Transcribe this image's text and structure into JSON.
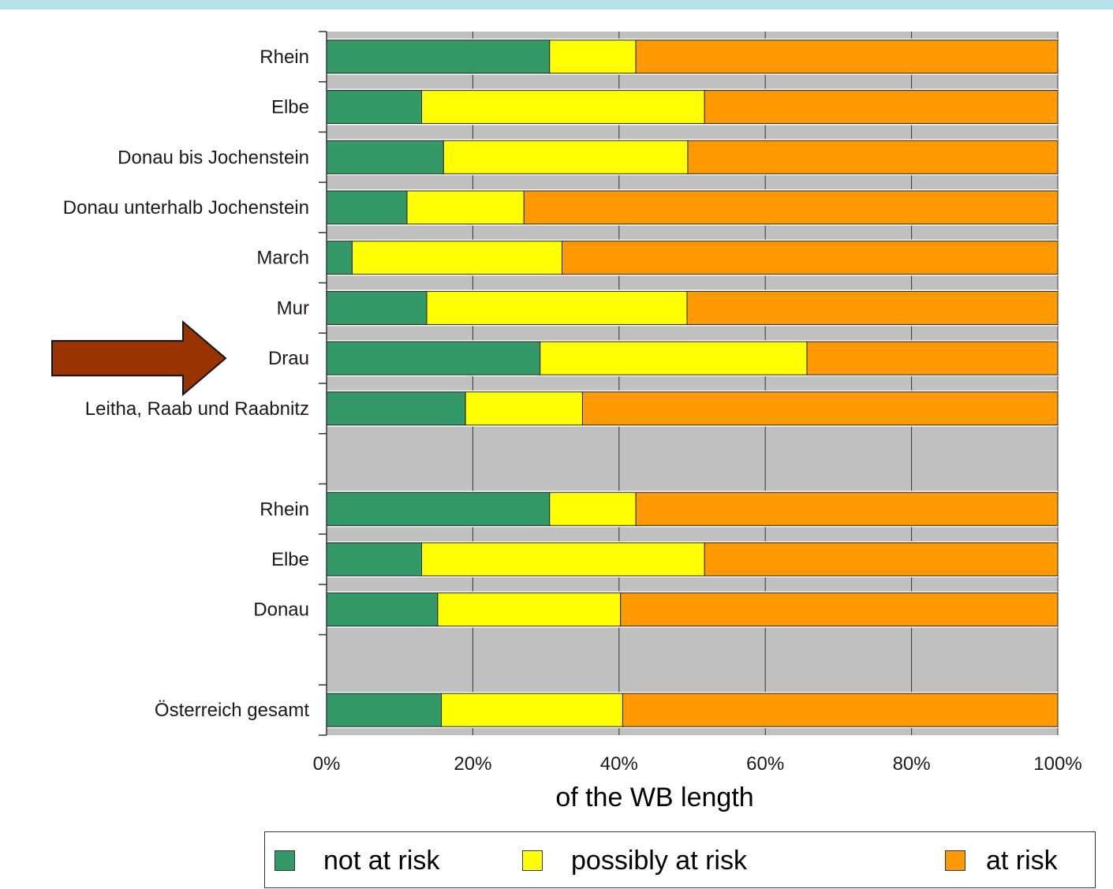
{
  "chart_data": {
    "type": "bar",
    "orientation": "horizontal",
    "stacked": true,
    "xlabel": "of the WB length",
    "xlim": [
      0,
      100
    ],
    "x_ticks": [
      "0%",
      "20%",
      "40%",
      "60%",
      "80%",
      "100%"
    ],
    "grid": true,
    "legend_position": "bottom",
    "categories": [
      "Rhein",
      "Elbe",
      "Donau bis Jochenstein",
      "Donau unterhalb Jochenstein",
      "March",
      "Mur",
      "Drau",
      "Leitha, Raab und Raabnitz",
      "",
      "Rhein",
      "Elbe",
      "Donau",
      "",
      "Österreich gesamt"
    ],
    "series": [
      {
        "name": "not at risk",
        "color": "#339966",
        "values": [
          30.5,
          13,
          16,
          11,
          3.5,
          13.7,
          29.2,
          19,
          null,
          30.5,
          13,
          15.2,
          null,
          15.7
        ]
      },
      {
        "name": "possibly at risk",
        "color": "#ffff00",
        "values": [
          11.8,
          38.7,
          33.4,
          16,
          28.7,
          35.6,
          36.5,
          16,
          null,
          11.8,
          38.7,
          25,
          null,
          24.8
        ]
      },
      {
        "name": "at risk",
        "color": "#ff9900",
        "values": [
          57.7,
          48.3,
          50.6,
          73,
          67.8,
          50.7,
          34.3,
          65,
          null,
          57.7,
          48.3,
          59.8,
          null,
          59.5
        ]
      }
    ],
    "annotation": {
      "type": "arrow",
      "points_to": "Drau",
      "color": "#993300"
    }
  },
  "legend": {
    "items": [
      {
        "label": "not at risk",
        "color": "#339966"
      },
      {
        "label": "possibly at risk",
        "color": "#ffff00"
      },
      {
        "label": "at risk",
        "color": "#ff9900"
      }
    ]
  }
}
